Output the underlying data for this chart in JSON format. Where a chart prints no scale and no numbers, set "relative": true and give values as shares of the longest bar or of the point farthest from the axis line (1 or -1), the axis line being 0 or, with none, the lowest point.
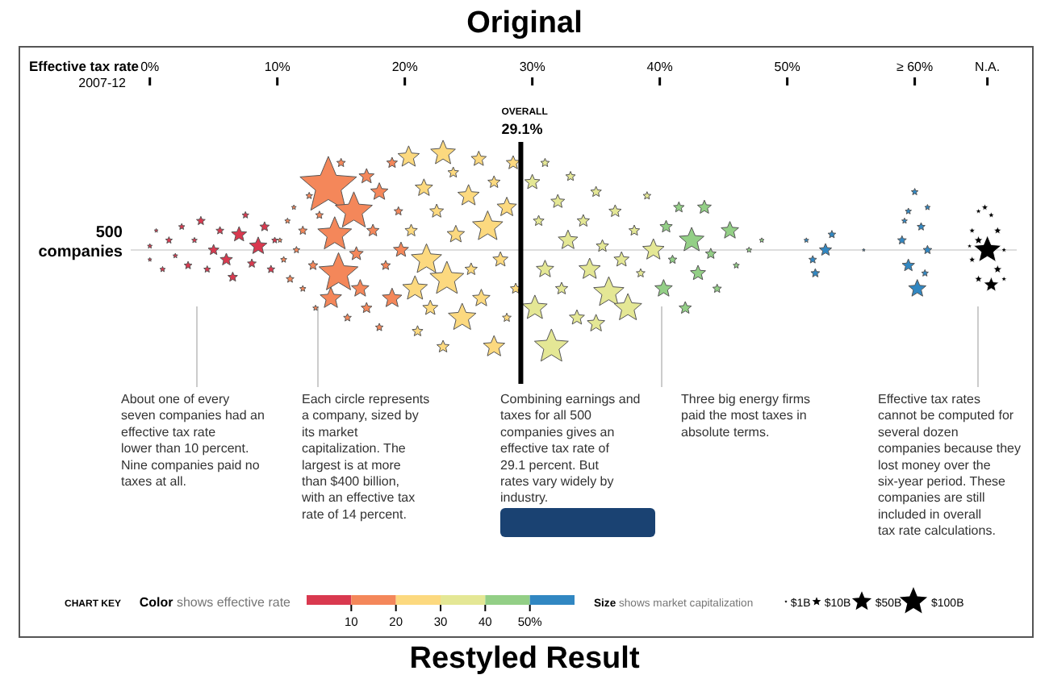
{
  "chart_data": {
    "type": "bubble",
    "title": "Original",
    "subtitle": "2007-12",
    "xlabel": "Effective tax rate",
    "ylabel": "500 companies",
    "clabel": "Color shows effective rate",
    "relative": true,
    "xlim": [
      -1.5,
      68
    ],
    "xticks": [
      {
        "value": 0,
        "label": "0%"
      },
      {
        "value": 10,
        "label": "10%"
      },
      {
        "value": 20,
        "label": "20%"
      },
      {
        "value": 30,
        "label": "30%"
      },
      {
        "value": 40,
        "label": "40%"
      },
      {
        "value": 50,
        "label": "50%"
      },
      {
        "value": 60,
        "label": "≥ 60%"
      },
      {
        "value": 65.7,
        "label": "N.A."
      }
    ],
    "clim": [
      0,
      60
    ],
    "cticks": [
      {
        "value": 10,
        "label": "10"
      },
      {
        "value": 20,
        "label": "20"
      },
      {
        "value": 30,
        "label": "30"
      },
      {
        "value": 40,
        "label": "40"
      },
      {
        "value": 50,
        "label": "50%"
      }
    ],
    "size_legend": [
      {
        "value": 1,
        "label": "$1B"
      },
      {
        "value": 10,
        "label": "$10B"
      },
      {
        "value": 50,
        "label": "$50B"
      },
      {
        "value": 100,
        "label": "$100B"
      }
    ],
    "ref_lines": [
      {
        "axis": "x",
        "value": 29.1,
        "label": "OVERALL 29.1%",
        "color": "#000000"
      }
    ],
    "series": [
      {
        "color": "#d9394f",
        "x": [
          0,
          0,
          0.5,
          1,
          1.5,
          2,
          2.5,
          3,
          3.5,
          4,
          4.5,
          5,
          5.5,
          6,
          6.5,
          7,
          7.5,
          8,
          8.5,
          9,
          9.5,
          9.8
        ],
        "values": [
          0.04,
          -0.1,
          0.2,
          -0.2,
          0.1,
          -0.06,
          0.24,
          -0.16,
          0.1,
          0.3,
          -0.2,
          0,
          0.2,
          -0.1,
          -0.28,
          0.16,
          0.36,
          -0.14,
          0.04,
          0.24,
          -0.2,
          0.1
        ],
        "sizes": [
          3,
          2,
          2,
          4,
          6,
          3,
          5,
          8,
          4,
          10,
          6,
          15,
          8,
          20,
          12,
          30,
          6,
          10,
          40,
          12,
          8,
          5
        ]
      },
      {
        "color": "#f4875a",
        "x": [
          10.2,
          10.5,
          10.8,
          11,
          11.3,
          11.5,
          12,
          12,
          12.5,
          12.8,
          13,
          13.3,
          14,
          14.5,
          14.8,
          14.2,
          15,
          15.5,
          16,
          16.2,
          16.5,
          17,
          17,
          17.5,
          18,
          18,
          18.5,
          19,
          19,
          19.5,
          19.7
        ],
        "values": [
          0.1,
          -0.1,
          0.3,
          -0.3,
          0.44,
          0,
          0.2,
          -0.4,
          0.56,
          -0.16,
          -0.6,
          0.36,
          0.66,
          0.16,
          -0.24,
          -0.5,
          0.9,
          -0.7,
          0.4,
          -0.04,
          -0.4,
          0.76,
          -0.6,
          0.2,
          -0.8,
          0.6,
          -0.16,
          0.9,
          -0.5,
          0.4,
          0
        ],
        "sizes": [
          3,
          5,
          4,
          8,
          3,
          6,
          10,
          5,
          6,
          12,
          4,
          8,
          420,
          150,
          200,
          60,
          10,
          8,
          180,
          25,
          40,
          30,
          15,
          20,
          8,
          40,
          12,
          15,
          50,
          10,
          30
        ]
      },
      {
        "color": "#fcd97f",
        "x": [
          20.3,
          20.5,
          20.8,
          21,
          21.5,
          21.7,
          22,
          22.5,
          23,
          23,
          23.3,
          23.8,
          24,
          24.5,
          25,
          25.2,
          25.8,
          26,
          26.5,
          27,
          27,
          27.5,
          28,
          28,
          28.5,
          28.7
        ],
        "values": [
          0.96,
          0.2,
          -0.4,
          -0.84,
          0.64,
          -0.1,
          -0.6,
          0.4,
          1,
          -1,
          -0.3,
          0.8,
          0.16,
          -0.7,
          0.56,
          -0.2,
          0.94,
          -0.5,
          0.24,
          -1,
          0.7,
          -0.1,
          -0.7,
          0.44,
          0.9,
          -0.4
        ],
        "sizes": [
          60,
          20,
          80,
          15,
          40,
          120,
          30,
          25,
          80,
          20,
          150,
          15,
          40,
          100,
          60,
          20,
          30,
          40,
          120,
          60,
          20,
          30,
          10,
          50,
          25,
          15
        ]
      },
      {
        "color": "#e4e795",
        "x": [
          30,
          30.2,
          30.5,
          31,
          31,
          31.5,
          32,
          32.3,
          32.8,
          33,
          33.5,
          34,
          34.5,
          35,
          35,
          35.5,
          36,
          36.5,
          37,
          37.5,
          38,
          38.5,
          39,
          39.5
        ],
        "values": [
          0.7,
          -0.6,
          0.3,
          -0.2,
          0.9,
          -1,
          0.5,
          -0.4,
          0.1,
          0.76,
          -0.7,
          0.3,
          -0.2,
          0.6,
          -0.76,
          0.04,
          -0.44,
          0.4,
          -0.1,
          -0.6,
          0.2,
          -0.24,
          0.56,
          0
        ],
        "sizes": [
          30,
          80,
          15,
          40,
          10,
          150,
          25,
          20,
          50,
          12,
          30,
          20,
          60,
          15,
          40,
          20,
          120,
          20,
          30,
          100,
          15,
          10,
          8,
          60
        ]
      },
      {
        "color": "#93cf86",
        "x": [
          40.3,
          40.5,
          41,
          41.5,
          42,
          42.5,
          43,
          43.5,
          44,
          44.5,
          45.5,
          46,
          47,
          48
        ],
        "values": [
          -0.4,
          0.24,
          -0.1,
          0.44,
          -0.6,
          0.1,
          -0.24,
          0.44,
          -0.04,
          -0.4,
          0.2,
          -0.16,
          0,
          0.1
        ],
        "sizes": [
          40,
          20,
          10,
          15,
          20,
          80,
          30,
          25,
          15,
          10,
          40,
          5,
          4,
          3
        ]
      },
      {
        "color": "#3187c2",
        "x": [
          51.5,
          52,
          53,
          53.5,
          52.2,
          56,
          59,
          59.5,
          60,
          60.5,
          61,
          59.5,
          60.2,
          61,
          60.8,
          59.2
        ],
        "values": [
          0.1,
          -0.1,
          0,
          0.16,
          -0.24,
          0,
          0.1,
          0.4,
          0.6,
          0.24,
          0,
          -0.16,
          -0.4,
          0.44,
          -0.24,
          0.3
        ],
        "sizes": [
          3,
          8,
          20,
          8,
          10,
          1,
          10,
          5,
          6,
          8,
          10,
          20,
          40,
          4,
          6,
          4
        ]
      },
      {
        "color": "#000000",
        "x": [
          64.5,
          65,
          65.5,
          66,
          66.5,
          67,
          64.5,
          65,
          65.7,
          66.5,
          66,
          65,
          67,
          64.3
        ],
        "values": [
          0.2,
          0.4,
          0.44,
          0.36,
          0.2,
          0,
          -0.1,
          0.1,
          0,
          -0.2,
          -0.36,
          -0.3,
          -0.3,
          0.04
        ],
        "sizes": [
          5,
          4,
          6,
          5,
          8,
          4,
          6,
          10,
          100,
          10,
          30,
          8,
          4,
          3
        ]
      }
    ],
    "annotations": [
      "About one of every seven companies had an effective tax rate lower than 10 percent. Nine companies paid no taxes at all.",
      "Each circle represents a company, sized by its market capitalization. The largest is at more than $400 billion, with an effective tax rate of 14 percent.",
      "Combining earnings and taxes for all 500 companies gives an effective tax rate of 29.1 percent. But rates vary widely by industry.",
      "Three big energy firms paid the most taxes in absolute terms.",
      "Effective tax rates cannot be computed for several dozen companies because they lost money over the six-year period. These companies are still included in overall tax rate calculations.",
      "CHART KEY",
      "Size shows market capitalization",
      "Restyled Result"
    ]
  }
}
